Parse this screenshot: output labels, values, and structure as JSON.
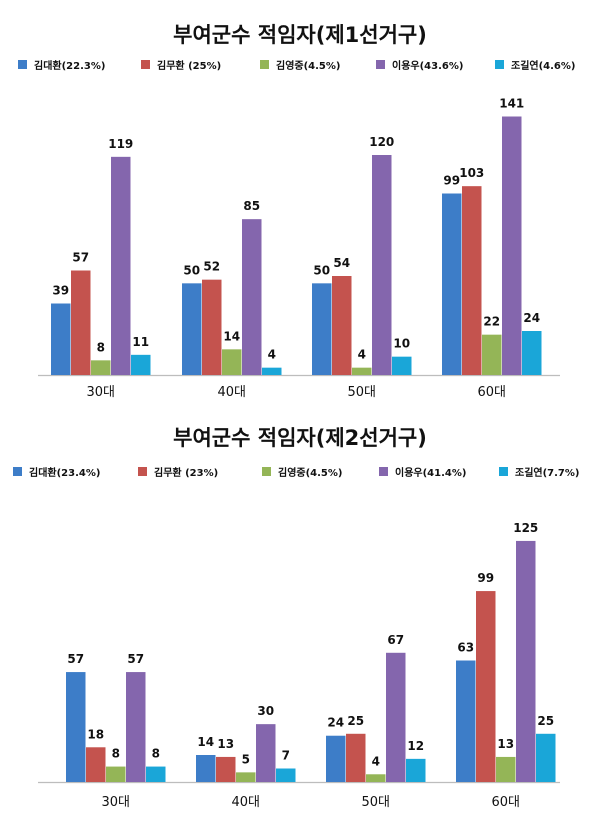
{
  "colors": [
    "#3d7dc8",
    "#c4534e",
    "#94b557",
    "#8466ad",
    "#1aa6d8"
  ],
  "chart_data": [
    {
      "type": "bar",
      "title": "부여군수 적임자(제1선거구)",
      "categories": [
        "30대",
        "40대",
        "50대",
        "60대"
      ],
      "legend": [
        "김대환(22.3%)",
        "김무환 (25%)",
        "김영중(4.5%)",
        "이용우(43.6%)",
        "조길연(4.6%)"
      ],
      "series": [
        {
          "name": "김대환(22.3%)",
          "values": [
            39,
            50,
            50,
            99
          ]
        },
        {
          "name": "김무환 (25%)",
          "values": [
            57,
            52,
            54,
            103
          ]
        },
        {
          "name": "김영중(4.5%)",
          "values": [
            8,
            14,
            4,
            22
          ]
        },
        {
          "name": "이용우(43.6%)",
          "values": [
            119,
            85,
            120,
            141
          ]
        },
        {
          "name": "조길연(4.6%)",
          "values": [
            11,
            4,
            10,
            24
          ]
        }
      ],
      "ylim": [
        0,
        150
      ],
      "legend_position": "top"
    },
    {
      "type": "bar",
      "title": "부여군수 적임자(제2선거구)",
      "categories": [
        "30대",
        "40대",
        "50대",
        "60대"
      ],
      "legend": [
        "김대환(23.4%)",
        "김무환 (23%)",
        "김영중(4.5%)",
        "이용우(41.4%)",
        "조길연(7.7%)"
      ],
      "series": [
        {
          "name": "김대환(23.4%)",
          "values": [
            57,
            14,
            24,
            63
          ]
        },
        {
          "name": "김무환 (23%)",
          "values": [
            18,
            13,
            25,
            99
          ]
        },
        {
          "name": "김영중(4.5%)",
          "values": [
            8,
            5,
            4,
            13
          ]
        },
        {
          "name": "이용우(41.4%)",
          "values": [
            57,
            30,
            67,
            125
          ]
        },
        {
          "name": "조길연(7.7%)",
          "values": [
            8,
            7,
            12,
            25
          ]
        }
      ],
      "ylim": [
        0,
        140
      ],
      "legend_position": "top"
    }
  ]
}
